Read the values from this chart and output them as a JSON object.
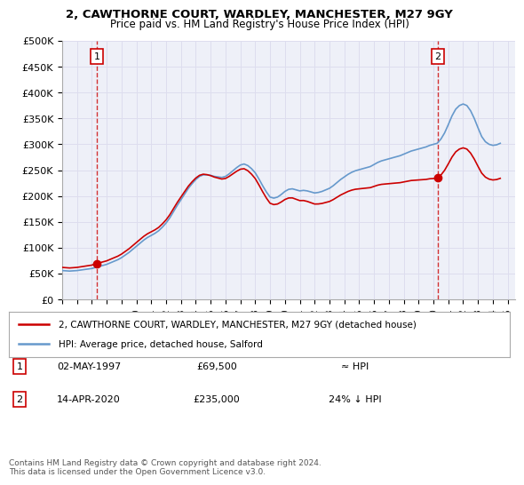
{
  "title": "2, CAWTHORNE COURT, WARDLEY, MANCHESTER, M27 9GY",
  "subtitle": "Price paid vs. HM Land Registry's House Price Index (HPI)",
  "xlabel": "",
  "ylabel": "",
  "ylim": [
    0,
    500000
  ],
  "yticks": [
    0,
    50000,
    100000,
    150000,
    200000,
    250000,
    300000,
    350000,
    400000,
    450000,
    500000
  ],
  "ytick_labels": [
    "£0",
    "£50K",
    "£100K",
    "£150K",
    "£200K",
    "£250K",
    "£300K",
    "£350K",
    "£400K",
    "£450K",
    "£500K"
  ],
  "xlim_start": 1995.0,
  "xlim_end": 2025.5,
  "xticks": [
    1995,
    1996,
    1997,
    1998,
    1999,
    2000,
    2001,
    2002,
    2003,
    2004,
    2005,
    2006,
    2007,
    2008,
    2009,
    2010,
    2011,
    2012,
    2013,
    2014,
    2015,
    2016,
    2017,
    2018,
    2019,
    2020,
    2021,
    2022,
    2023,
    2024,
    2025
  ],
  "red_line_color": "#cc0000",
  "blue_line_color": "#6699cc",
  "marker_color": "#cc0000",
  "dashed_line_color": "#cc0000",
  "grid_color": "#ddddee",
  "bg_color": "#eef0f8",
  "sale1_x": 1997.33,
  "sale1_y": 69500,
  "sale2_x": 2020.28,
  "sale2_y": 235000,
  "legend_line1": "2, CAWTHORNE COURT, WARDLEY, MANCHESTER, M27 9GY (detached house)",
  "legend_line2": "HPI: Average price, detached house, Salford",
  "table_row1_num": "1",
  "table_row1_date": "02-MAY-1997",
  "table_row1_price": "£69,500",
  "table_row1_hpi": "≈ HPI",
  "table_row2_num": "2",
  "table_row2_date": "14-APR-2020",
  "table_row2_price": "£235,000",
  "table_row2_hpi": "24% ↓ HPI",
  "footer": "Contains HM Land Registry data © Crown copyright and database right 2024.\nThis data is licensed under the Open Government Licence v3.0.",
  "hpi_data_x": [
    1995.0,
    1995.25,
    1995.5,
    1995.75,
    1996.0,
    1996.25,
    1996.5,
    1996.75,
    1997.0,
    1997.25,
    1997.5,
    1997.75,
    1998.0,
    1998.25,
    1998.5,
    1998.75,
    1999.0,
    1999.25,
    1999.5,
    1999.75,
    2000.0,
    2000.25,
    2000.5,
    2000.75,
    2001.0,
    2001.25,
    2001.5,
    2001.75,
    2002.0,
    2002.25,
    2002.5,
    2002.75,
    2003.0,
    2003.25,
    2003.5,
    2003.75,
    2004.0,
    2004.25,
    2004.5,
    2004.75,
    2005.0,
    2005.25,
    2005.5,
    2005.75,
    2006.0,
    2006.25,
    2006.5,
    2006.75,
    2007.0,
    2007.25,
    2007.5,
    2007.75,
    2008.0,
    2008.25,
    2008.5,
    2008.75,
    2009.0,
    2009.25,
    2009.5,
    2009.75,
    2010.0,
    2010.25,
    2010.5,
    2010.75,
    2011.0,
    2011.25,
    2011.5,
    2011.75,
    2012.0,
    2012.25,
    2012.5,
    2012.75,
    2013.0,
    2013.25,
    2013.5,
    2013.75,
    2014.0,
    2014.25,
    2014.5,
    2014.75,
    2015.0,
    2015.25,
    2015.5,
    2015.75,
    2016.0,
    2016.25,
    2016.5,
    2016.75,
    2017.0,
    2017.25,
    2017.5,
    2017.75,
    2018.0,
    2018.25,
    2018.5,
    2018.75,
    2019.0,
    2019.25,
    2019.5,
    2019.75,
    2020.0,
    2020.25,
    2020.5,
    2020.75,
    2021.0,
    2021.25,
    2021.5,
    2021.75,
    2022.0,
    2022.25,
    2022.5,
    2022.75,
    2023.0,
    2023.25,
    2023.5,
    2023.75,
    2024.0,
    2024.25,
    2024.5
  ],
  "hpi_data_y": [
    56000,
    55500,
    55000,
    55500,
    56000,
    57000,
    58000,
    59000,
    60000,
    62000,
    64000,
    66000,
    68000,
    71000,
    74000,
    77000,
    81000,
    86000,
    91000,
    97000,
    103000,
    109000,
    115000,
    120000,
    124000,
    128000,
    133000,
    140000,
    148000,
    158000,
    170000,
    182000,
    193000,
    204000,
    215000,
    224000,
    232000,
    238000,
    241000,
    241000,
    240000,
    238000,
    237000,
    236000,
    238000,
    243000,
    249000,
    255000,
    260000,
    262000,
    259000,
    253000,
    245000,
    233000,
    220000,
    208000,
    198000,
    196000,
    198000,
    203000,
    209000,
    213000,
    214000,
    212000,
    210000,
    211000,
    210000,
    208000,
    206000,
    207000,
    209000,
    212000,
    215000,
    220000,
    226000,
    232000,
    237000,
    242000,
    246000,
    249000,
    251000,
    253000,
    255000,
    257000,
    261000,
    265000,
    268000,
    270000,
    272000,
    274000,
    276000,
    278000,
    281000,
    284000,
    287000,
    289000,
    291000,
    293000,
    295000,
    298000,
    300000,
    302000,
    310000,
    322000,
    338000,
    355000,
    368000,
    375000,
    378000,
    375000,
    365000,
    350000,
    332000,
    315000,
    305000,
    300000,
    298000,
    299000,
    302000
  ],
  "property_data_x": [
    1997.33,
    2020.28
  ],
  "property_data_y": [
    69500,
    235000
  ]
}
